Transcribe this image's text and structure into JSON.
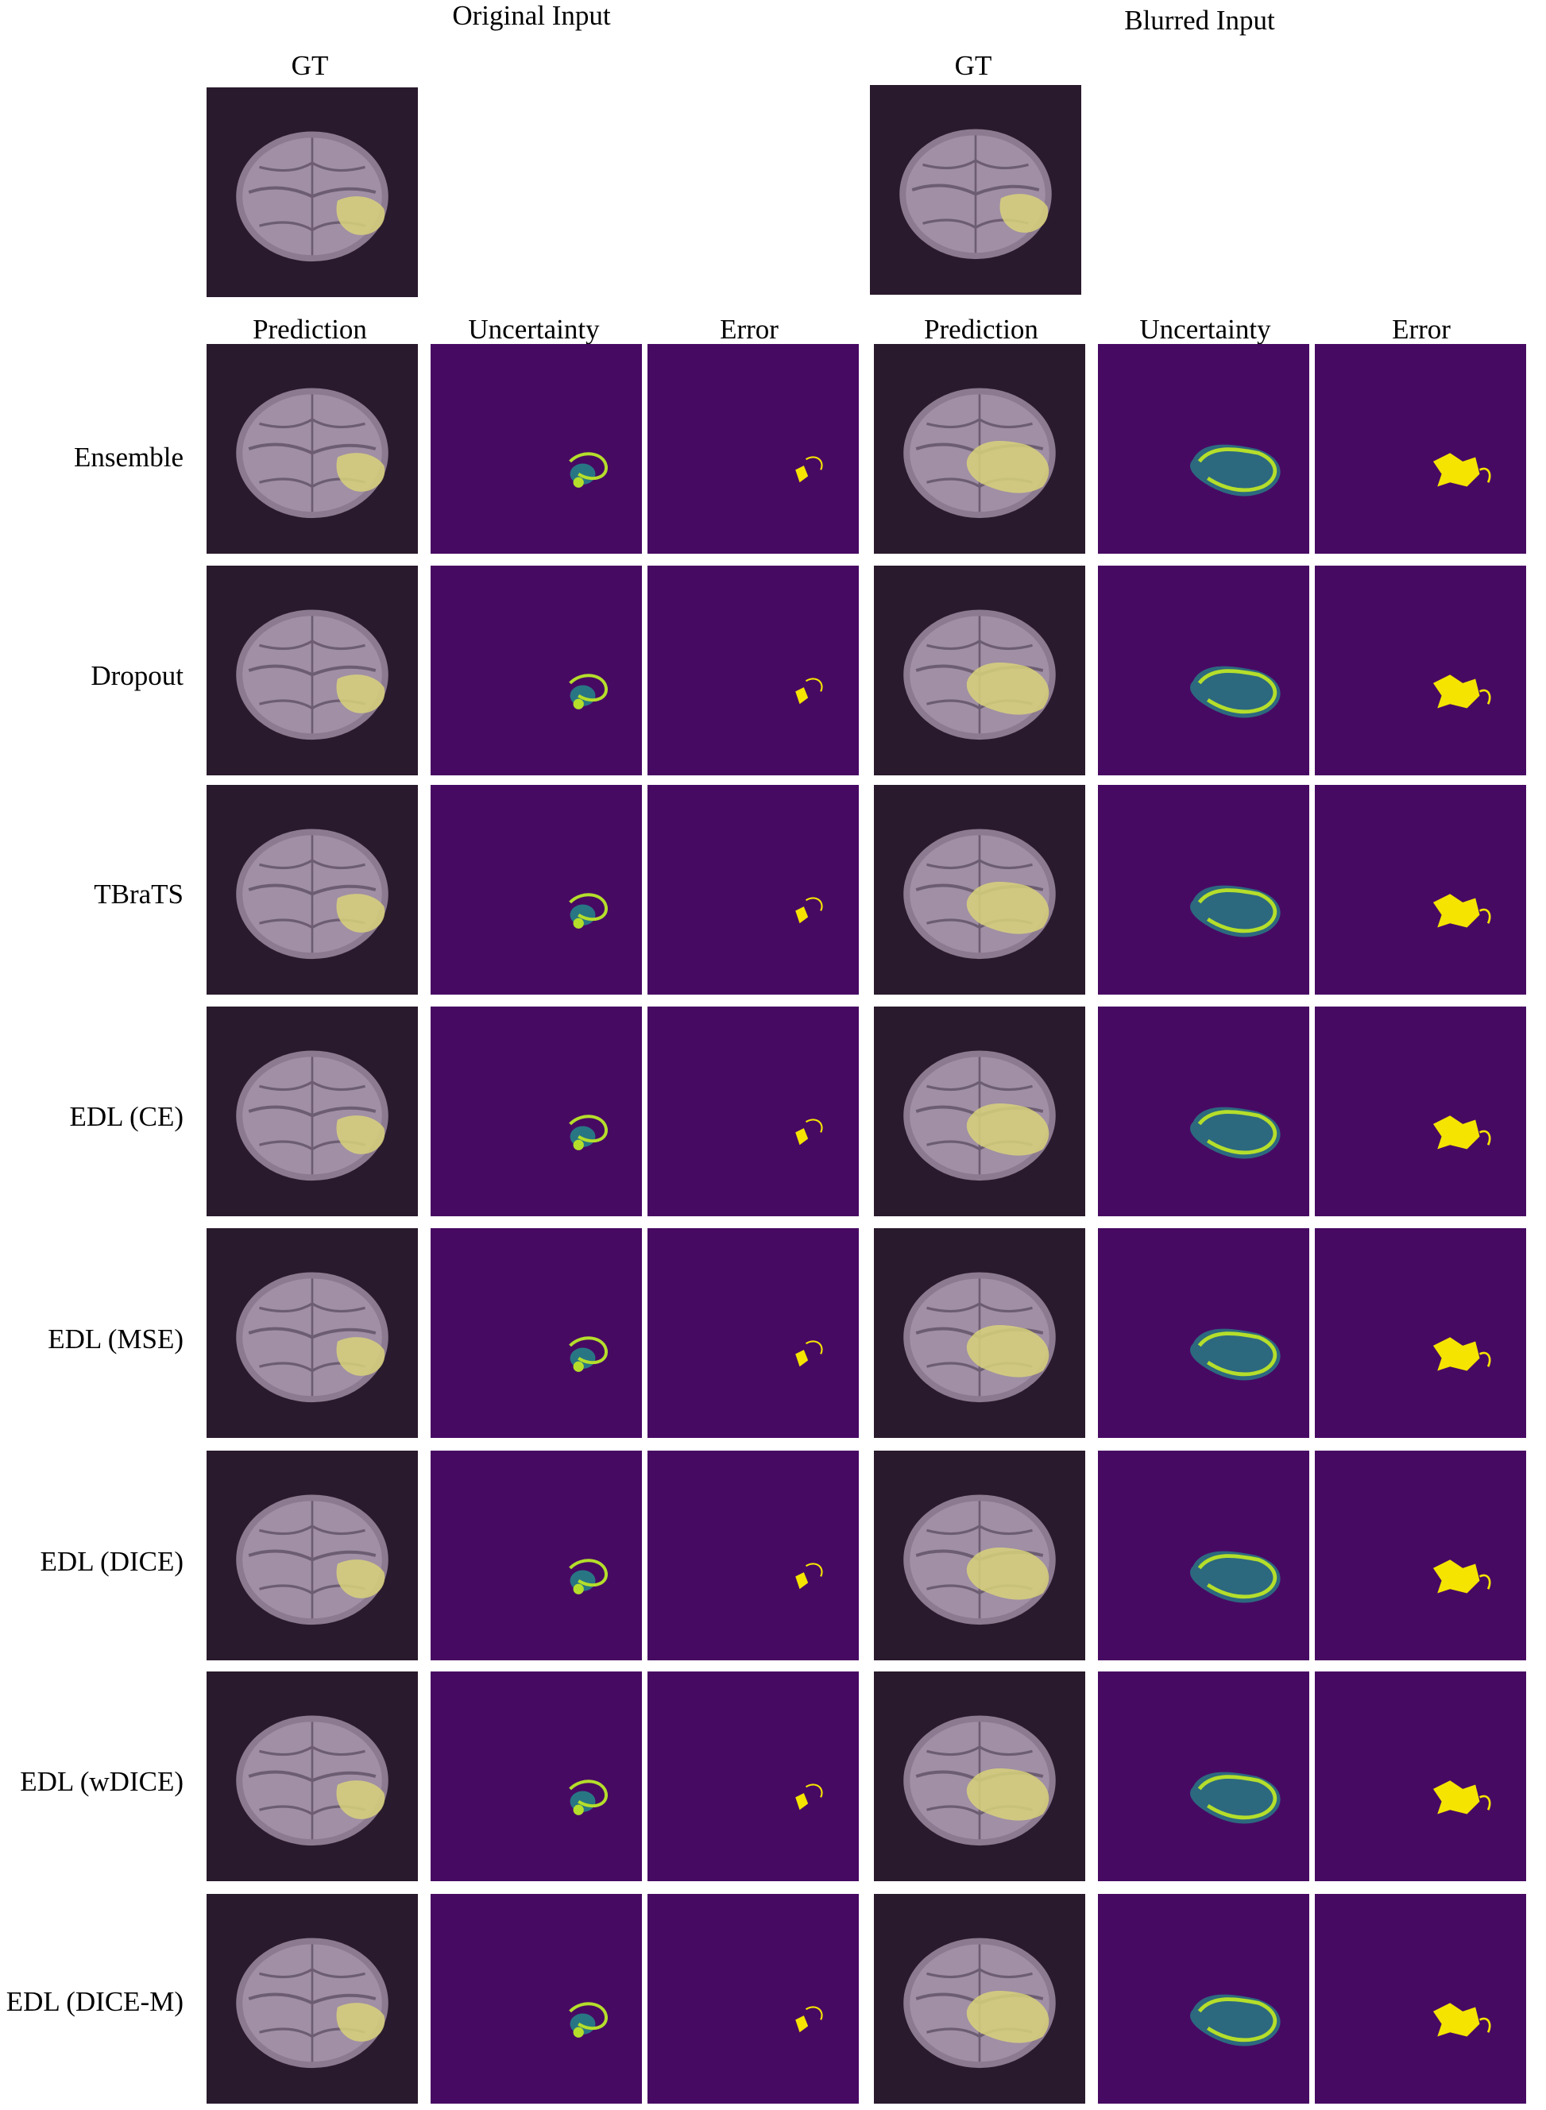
{
  "figure": {
    "group_titles": {
      "original": "Original Input",
      "blurred": "Blurred Input"
    },
    "gt_label": "GT",
    "column_headers": [
      "Prediction",
      "Uncertainty",
      "Error",
      "Prediction",
      "Uncertainty",
      "Error"
    ],
    "rows": [
      {
        "method": "Ensemble"
      },
      {
        "method": "Dropout"
      },
      {
        "method": "TBraTS"
      },
      {
        "method": "EDL (CE)"
      },
      {
        "method": "EDL (MSE)"
      },
      {
        "method": "EDL (DICE)"
      },
      {
        "method": "EDL (wDICE)"
      },
      {
        "method": "EDL (DICE-M)"
      }
    ],
    "colors": {
      "mri_background": "#2a1a2d",
      "map_background": "#470a63",
      "tumor_overlay": "#d8d27a",
      "uncertainty_high": "#b5de2b",
      "uncertainty_mid": "#21918c",
      "error_yellow": "#f5e400"
    }
  }
}
